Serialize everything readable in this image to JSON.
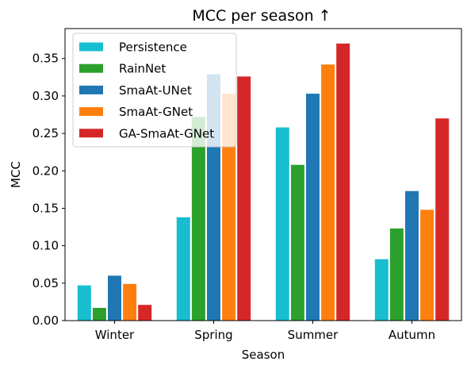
{
  "chart_data": {
    "type": "bar",
    "title": "MCC per season ↑",
    "xlabel": "Season",
    "ylabel": "MCC",
    "categories": [
      "Winter",
      "Spring",
      "Summer",
      "Autumn"
    ],
    "ylim": [
      0,
      0.39
    ],
    "yticks": [
      "0.00",
      "0.05",
      "0.10",
      "0.15",
      "0.20",
      "0.25",
      "0.30",
      "0.35"
    ],
    "legend_position": "top-left",
    "grid": false,
    "series": [
      {
        "name": "Persistence",
        "color": "#17becf",
        "values": [
          0.047,
          0.138,
          0.258,
          0.082
        ]
      },
      {
        "name": "RainNet",
        "color": "#2ca02c",
        "values": [
          0.017,
          0.272,
          0.208,
          0.123
        ]
      },
      {
        "name": "SmaAt-UNet",
        "color": "#1f77b4",
        "values": [
          0.06,
          0.329,
          0.303,
          0.173
        ]
      },
      {
        "name": "SmaAt-GNet",
        "color": "#ff7f0e",
        "values": [
          0.049,
          0.303,
          0.342,
          0.148
        ]
      },
      {
        "name": "GA-SmaAt-GNet",
        "color": "#d62728",
        "values": [
          0.021,
          0.326,
          0.37,
          0.27
        ]
      }
    ]
  }
}
